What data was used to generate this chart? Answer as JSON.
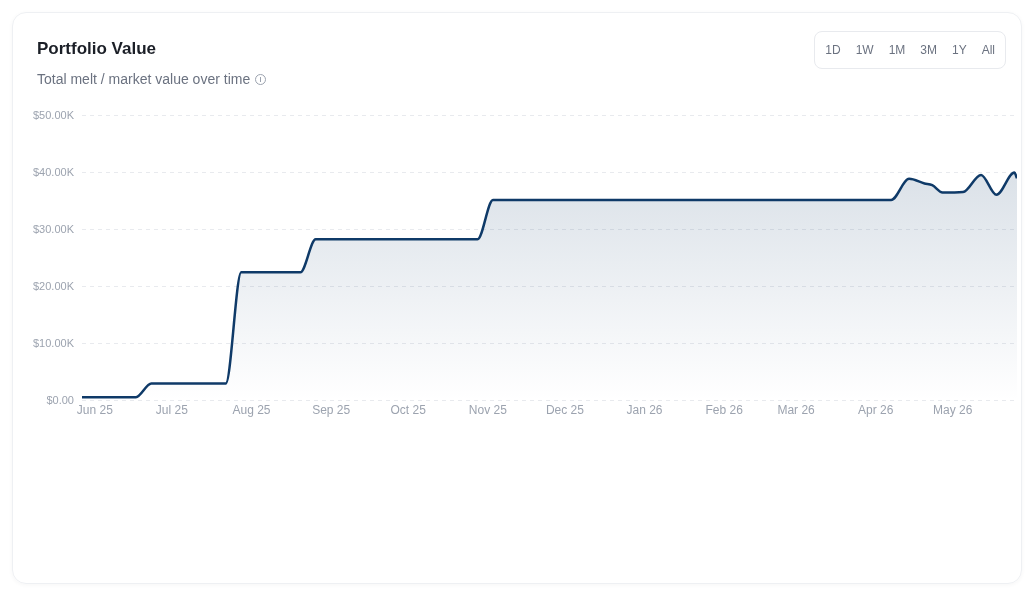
{
  "chart_data": {
    "type": "area",
    "title": "Portfolio Value",
    "subtitle": "Total melt / market value over time",
    "annotations": [
      "1D",
      "1W",
      "1M",
      "3M",
      "1Y",
      "All"
    ],
    "x": [
      "2025-05-27",
      "2025-06-17",
      "2025-06-23",
      "2025-07-22",
      "2025-07-28",
      "2025-08-20",
      "2025-08-26",
      "2025-10-28",
      "2025-11-03",
      "2026-04-07",
      "2026-04-14",
      "2026-04-20",
      "2026-04-23",
      "2026-04-27",
      "2026-05-05",
      "2026-05-12",
      "2026-05-18",
      "2026-05-25",
      "2026-05-26"
    ],
    "series": [
      {
        "color": "#0f3a68",
        "values": [
          0.6,
          0.6,
          3.0,
          3.0,
          22.5,
          22.5,
          28.3,
          28.3,
          35.2,
          35.2,
          38.9,
          38.1,
          37.8,
          36.5,
          36.6,
          39.6,
          36.1,
          40.0,
          39.0
        ]
      }
    ],
    "xlim": [
      "2025-05-27",
      "2026-05-26"
    ],
    "xticks": [
      {
        "value": "2025-06-01",
        "label": "Jun 25"
      },
      {
        "value": "2025-07-01",
        "label": "Jul 25"
      },
      {
        "value": "2025-08-01",
        "label": "Aug 25"
      },
      {
        "value": "2025-09-01",
        "label": "Sep 25"
      },
      {
        "value": "2025-10-01",
        "label": "Oct 25"
      },
      {
        "value": "2025-11-01",
        "label": "Nov 25"
      },
      {
        "value": "2025-12-01",
        "label": "Dec 25"
      },
      {
        "value": "2026-01-01",
        "label": "Jan 26"
      },
      {
        "value": "2026-02-01",
        "label": "Feb 26"
      },
      {
        "value": "2026-03-01",
        "label": "Mar 26"
      },
      {
        "value": "2026-04-01",
        "label": "Apr 26"
      },
      {
        "value": "2026-05-01",
        "label": "May 26"
      }
    ],
    "ylim": [
      0,
      50
    ],
    "yticks": [
      {
        "value": 0,
        "label": "$0.00"
      },
      {
        "value": 10,
        "label": "$10.00K"
      },
      {
        "value": 20,
        "label": "$20.00K"
      },
      {
        "value": 30,
        "label": "$30.00K"
      },
      {
        "value": 40,
        "label": "$40.00K"
      },
      {
        "value": 50,
        "label": "$50.00K"
      }
    ],
    "grid": "y",
    "legend": false,
    "marker": "none",
    "line_style": "solid"
  }
}
